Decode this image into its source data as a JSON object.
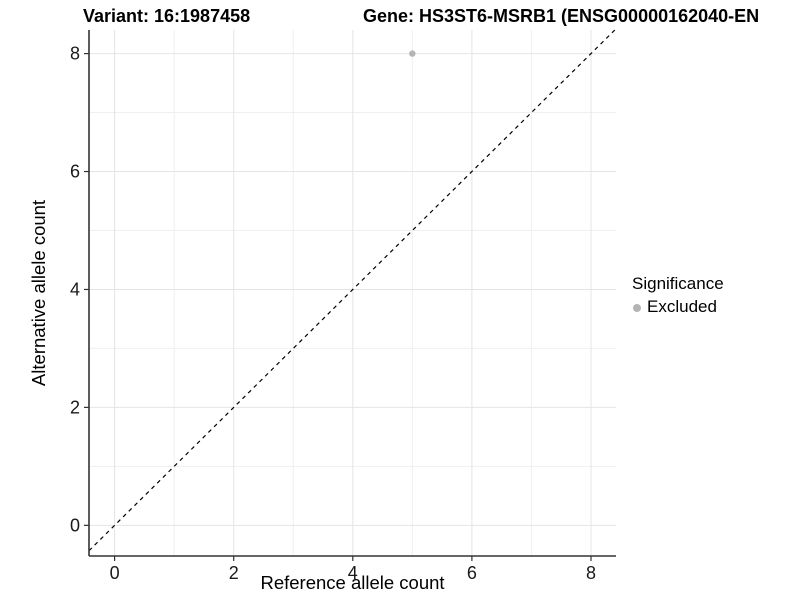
{
  "titles": {
    "variant": "Variant: 16:1987458",
    "gene": "Gene: HS3ST6-MSRB1 (ENSG00000162040-EN"
  },
  "chart_data": {
    "type": "scatter",
    "xlabel": "Reference allele count",
    "ylabel": "Alternative allele count",
    "xlim": [
      -0.43,
      8.42
    ],
    "ylim": [
      -0.52,
      8.4
    ],
    "x_ticks": [
      0,
      2,
      4,
      6,
      8
    ],
    "y_ticks": [
      0,
      2,
      4,
      6,
      8
    ],
    "x_minor": [
      1,
      3,
      5,
      7
    ],
    "y_minor": [
      1,
      3,
      5,
      7
    ],
    "grid": true,
    "points": [
      {
        "x": 5,
        "y": 8,
        "series": "Excluded"
      }
    ],
    "abline": {
      "slope": 1,
      "intercept": 0,
      "style": "dashed"
    },
    "legend": {
      "title": "Significance",
      "position": "right",
      "items": [
        {
          "label": "Excluded",
          "color": "#b4b4b4"
        }
      ]
    }
  },
  "colors": {
    "point": "#b4b4b4",
    "grid_major": "#e4e4e4",
    "grid_minor": "#efefef",
    "axis_line": "#333333",
    "tick_text": "#1a1a1a",
    "abline": "#000000",
    "background": "#ffffff"
  }
}
